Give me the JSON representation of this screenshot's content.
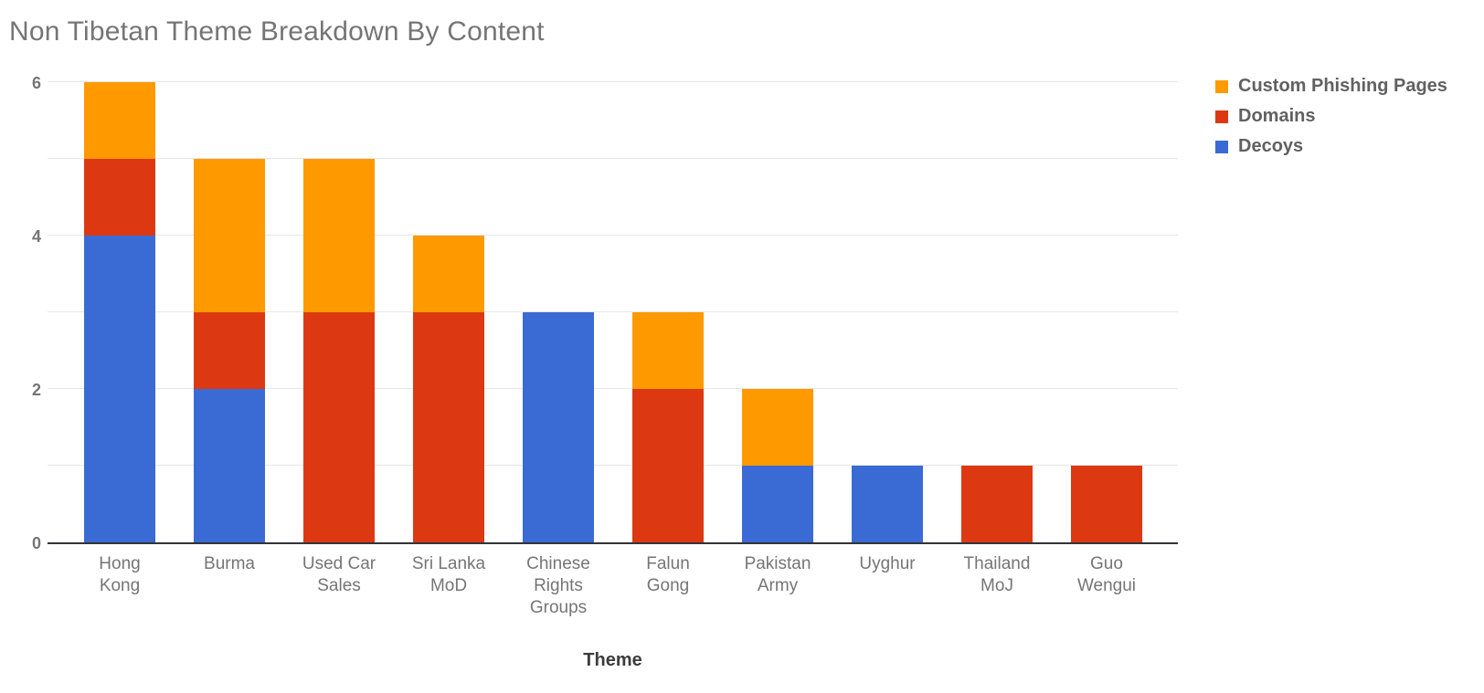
{
  "title": "Non Tibetan Theme Breakdown By Content",
  "chart_data": {
    "type": "bar",
    "stacked": true,
    "title": "Non Tibetan Theme Breakdown By Content",
    "xlabel": "Theme",
    "ylabel": "",
    "ylim": [
      0,
      6
    ],
    "y_ticks": [
      0,
      2,
      4,
      6
    ],
    "gridlines_every": 1,
    "grid": true,
    "legend_position": "right",
    "legend_order_top_to_bottom": [
      "Custom Phishing Pages",
      "Domains",
      "Decoys"
    ],
    "categories": [
      "Hong Kong",
      "Burma",
      "Used Car Sales",
      "Sri Lanka MoD",
      "Chinese Rights Groups",
      "Falun Gong",
      "Pakistan Army",
      "Uyghur",
      "Thailand MoJ",
      "Guo Wengui"
    ],
    "category_label_lines": [
      [
        "Hong",
        "Kong"
      ],
      [
        "Burma"
      ],
      [
        "Used Car",
        "Sales"
      ],
      [
        "Sri Lanka",
        "MoD"
      ],
      [
        "Chinese",
        "Rights",
        "Groups"
      ],
      [
        "Falun",
        "Gong"
      ],
      [
        "Pakistan",
        "Army"
      ],
      [
        "Uyghur"
      ],
      [
        "Thailand",
        "MoJ"
      ],
      [
        "Guo",
        "Wengui"
      ]
    ],
    "series": [
      {
        "name": "Decoys",
        "color": "#3A6AD4",
        "values": [
          4,
          2,
          0,
          0,
          3,
          0,
          1,
          1,
          0,
          0
        ]
      },
      {
        "name": "Domains",
        "color": "#DC3912",
        "values": [
          1,
          1,
          3,
          3,
          0,
          2,
          0,
          0,
          1,
          1
        ]
      },
      {
        "name": "Custom Phishing Pages",
        "color": "#FF9900",
        "values": [
          1,
          2,
          2,
          1,
          0,
          1,
          1,
          0,
          0,
          0
        ]
      }
    ],
    "totals": [
      6,
      5,
      5,
      4,
      3,
      3,
      2,
      1,
      1,
      1
    ]
  },
  "colors": {
    "decoys_blue": "#3A6AD4",
    "domains_red": "#DC3912",
    "phishing_orange": "#FF9900",
    "gridline": "#e6e6e6",
    "baseline": "#333338",
    "title_gray": "#757575",
    "axis_label_gray": "#757575",
    "legend_text_gray": "#616161"
  }
}
